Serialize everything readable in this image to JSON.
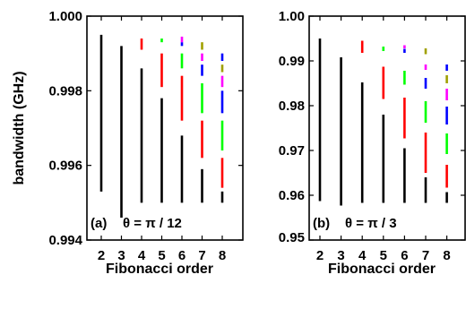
{
  "chart_data": [
    {
      "type": "bar",
      "panel_label": "(a)",
      "annotation": "θ = π / 12",
      "xlabel": "Fibonacci order",
      "ylabel": "bandwidth (GHz)",
      "ylim": [
        0.994,
        1.0
      ],
      "yticks": [
        "0.994",
        "0.996",
        "0.998",
        "1.000"
      ],
      "ytick_values": [
        0.994,
        0.996,
        0.998,
        1.0
      ],
      "x": [
        2,
        3,
        4,
        5,
        6,
        7,
        8
      ],
      "xtick_labels": [
        "2",
        "3",
        "4",
        "5",
        "6",
        "7",
        "8"
      ],
      "bands": [
        {
          "x": 2,
          "segments": [
            {
              "color": "#000000",
              "y0": 0.9953,
              "y1": 0.9995
            }
          ]
        },
        {
          "x": 3,
          "segments": [
            {
              "color": "#000000",
              "y0": 0.9946,
              "y1": 0.9992
            }
          ]
        },
        {
          "x": 4,
          "segments": [
            {
              "color": "#000000",
              "y0": 0.995,
              "y1": 0.9986
            },
            {
              "color": "#ff0000",
              "y0": 0.9991,
              "y1": 0.9994
            }
          ]
        },
        {
          "x": 5,
          "segments": [
            {
              "color": "#000000",
              "y0": 0.995,
              "y1": 0.9978
            },
            {
              "color": "#ff0000",
              "y0": 0.9981,
              "y1": 0.999
            },
            {
              "color": "#00ff00",
              "y0": 0.9993,
              "y1": 0.9994
            }
          ]
        },
        {
          "x": 6,
          "segments": [
            {
              "color": "#000000",
              "y0": 0.995,
              "y1": 0.9968
            },
            {
              "color": "#ff0000",
              "y0": 0.9972,
              "y1": 0.9984
            },
            {
              "color": "#00ff00",
              "y0": 0.9986,
              "y1": 0.999
            },
            {
              "color": "#0000ff",
              "y0": 0.9992,
              "y1": 0.9993
            },
            {
              "color": "#ff00ff",
              "y0": 0.9993,
              "y1": 0.99945
            }
          ]
        },
        {
          "x": 7,
          "segments": [
            {
              "color": "#000000",
              "y0": 0.995,
              "y1": 0.9959
            },
            {
              "color": "#ff0000",
              "y0": 0.9962,
              "y1": 0.9972
            },
            {
              "color": "#00ff00",
              "y0": 0.9974,
              "y1": 0.9982
            },
            {
              "color": "#0000ff",
              "y0": 0.9984,
              "y1": 0.9987
            },
            {
              "color": "#ff00ff",
              "y0": 0.9988,
              "y1": 0.999
            },
            {
              "color": "#a0a000",
              "y0": 0.9991,
              "y1": 0.9993
            }
          ]
        },
        {
          "x": 8,
          "segments": [
            {
              "color": "#000000",
              "y0": 0.995,
              "y1": 0.9953
            },
            {
              "color": "#ff0000",
              "y0": 0.9954,
              "y1": 0.9962
            },
            {
              "color": "#00ff00",
              "y0": 0.9964,
              "y1": 0.9972
            },
            {
              "color": "#0000ff",
              "y0": 0.9974,
              "y1": 0.998
            },
            {
              "color": "#ff00ff",
              "y0": 0.9981,
              "y1": 0.9984
            },
            {
              "color": "#a0a000",
              "y0": 0.9985,
              "y1": 0.9987
            },
            {
              "color": "#0000ff",
              "y0": 0.9988,
              "y1": 0.999
            }
          ]
        }
      ]
    },
    {
      "type": "bar",
      "panel_label": "(b)",
      "annotation": "θ = π / 3",
      "xlabel": "Fibonacci order",
      "ylabel": "",
      "ylim": [
        0.95,
        1.0
      ],
      "yticks": [
        "0.95",
        "0.96",
        "0.97",
        "0.98",
        "0.99",
        "1.00"
      ],
      "ytick_values": [
        0.95,
        0.96,
        0.97,
        0.98,
        0.99,
        1.0
      ],
      "x": [
        2,
        3,
        4,
        5,
        6,
        7,
        8
      ],
      "xtick_labels": [
        "2",
        "3",
        "4",
        "5",
        "6",
        "7",
        "8"
      ],
      "bands": [
        {
          "x": 2,
          "segments": [
            {
              "color": "#000000",
              "y0": 0.9587,
              "y1": 0.995
            }
          ]
        },
        {
          "x": 3,
          "segments": [
            {
              "color": "#000000",
              "y0": 0.9577,
              "y1": 0.9908
            }
          ]
        },
        {
          "x": 4,
          "segments": [
            {
              "color": "#000000",
              "y0": 0.9583,
              "y1": 0.9852
            },
            {
              "color": "#ff0000",
              "y0": 0.9918,
              "y1": 0.9945
            }
          ]
        },
        {
          "x": 5,
          "segments": [
            {
              "color": "#000000",
              "y0": 0.9583,
              "y1": 0.978
            },
            {
              "color": "#ff0000",
              "y0": 0.9815,
              "y1": 0.9887
            },
            {
              "color": "#00ff00",
              "y0": 0.9922,
              "y1": 0.9932
            }
          ]
        },
        {
          "x": 6,
          "segments": [
            {
              "color": "#000000",
              "y0": 0.9583,
              "y1": 0.9705
            },
            {
              "color": "#ff0000",
              "y0": 0.9727,
              "y1": 0.9818
            },
            {
              "color": "#00ff00",
              "y0": 0.9847,
              "y1": 0.9878
            },
            {
              "color": "#0000ff",
              "y0": 0.9918,
              "y1": 0.9927
            },
            {
              "color": "#ff00ff",
              "y0": 0.9928,
              "y1": 0.9935
            }
          ]
        },
        {
          "x": 7,
          "segments": [
            {
              "color": "#000000",
              "y0": 0.9583,
              "y1": 0.964
            },
            {
              "color": "#ff0000",
              "y0": 0.965,
              "y1": 0.974
            },
            {
              "color": "#00ff00",
              "y0": 0.9762,
              "y1": 0.981
            },
            {
              "color": "#0000ff",
              "y0": 0.9838,
              "y1": 0.9862
            },
            {
              "color": "#ff00ff",
              "y0": 0.988,
              "y1": 0.9892
            },
            {
              "color": "#a0a000",
              "y0": 0.9915,
              "y1": 0.9928
            }
          ]
        },
        {
          "x": 8,
          "segments": [
            {
              "color": "#000000",
              "y0": 0.9583,
              "y1": 0.9607
            },
            {
              "color": "#ff0000",
              "y0": 0.9617,
              "y1": 0.9668
            },
            {
              "color": "#00ff00",
              "y0": 0.9692,
              "y1": 0.9738
            },
            {
              "color": "#0000ff",
              "y0": 0.9758,
              "y1": 0.9798
            },
            {
              "color": "#ff00ff",
              "y0": 0.9812,
              "y1": 0.9838
            },
            {
              "color": "#a0a000",
              "y0": 0.985,
              "y1": 0.9868
            },
            {
              "color": "#0000ff",
              "y0": 0.9878,
              "y1": 0.9892
            }
          ]
        }
      ]
    }
  ]
}
